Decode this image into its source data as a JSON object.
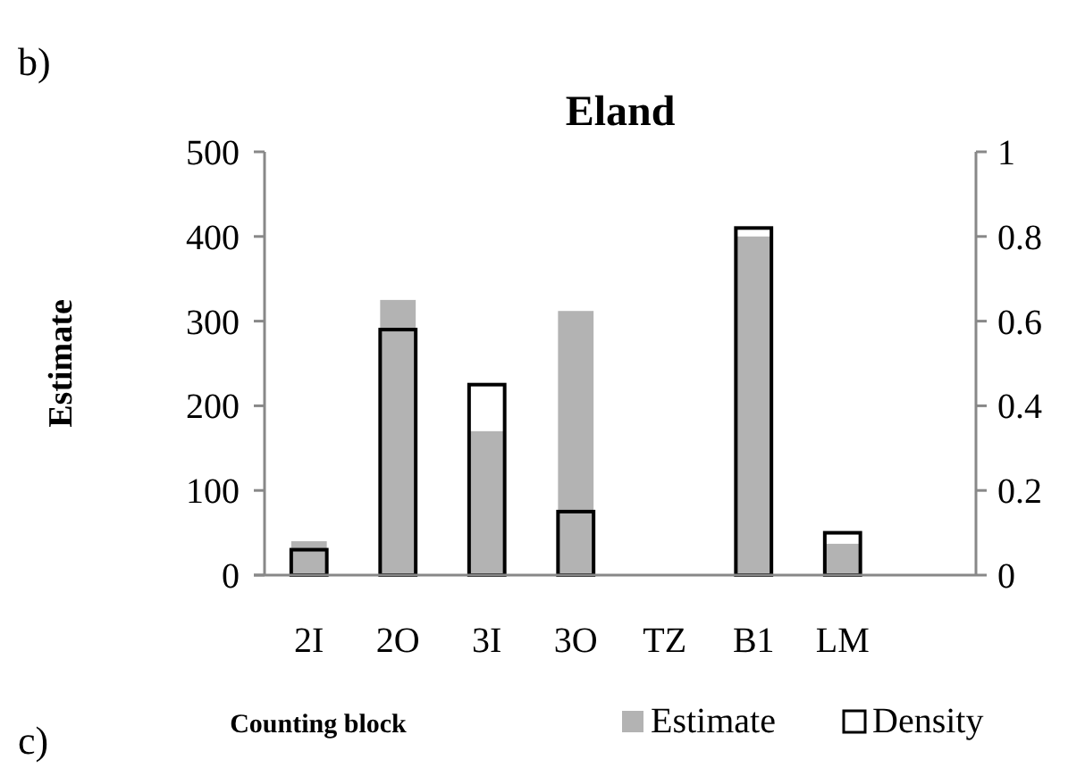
{
  "chart_data": {
    "type": "bar",
    "title": "Eland",
    "xlabel": "Counting block",
    "ylabel": "Estimate",
    "annotations": [
      "b)",
      "c)"
    ],
    "categories": [
      "2I",
      "2O",
      "3I",
      "3O",
      "TZ",
      "B1",
      "LM",
      null
    ],
    "series": [
      {
        "name": "Estimate",
        "color": "#b3b3b3",
        "values": [
          40,
          325,
          170,
          312,
          0,
          400,
          37,
          null
        ]
      },
      {
        "name": "Density",
        "color": "#000000",
        "axis": "y2",
        "values": [
          0.06,
          0.58,
          0.45,
          0.15,
          0,
          0.82,
          0.1,
          null
        ]
      }
    ],
    "ylim": [
      0,
      500
    ],
    "yticks": [
      0,
      100,
      200,
      300,
      400,
      500
    ],
    "y2lim": [
      0,
      1
    ],
    "y2ticks": [
      0,
      0.2,
      0.4,
      0.6,
      0.8,
      1
    ],
    "grid": false,
    "legend": "bottom right"
  }
}
